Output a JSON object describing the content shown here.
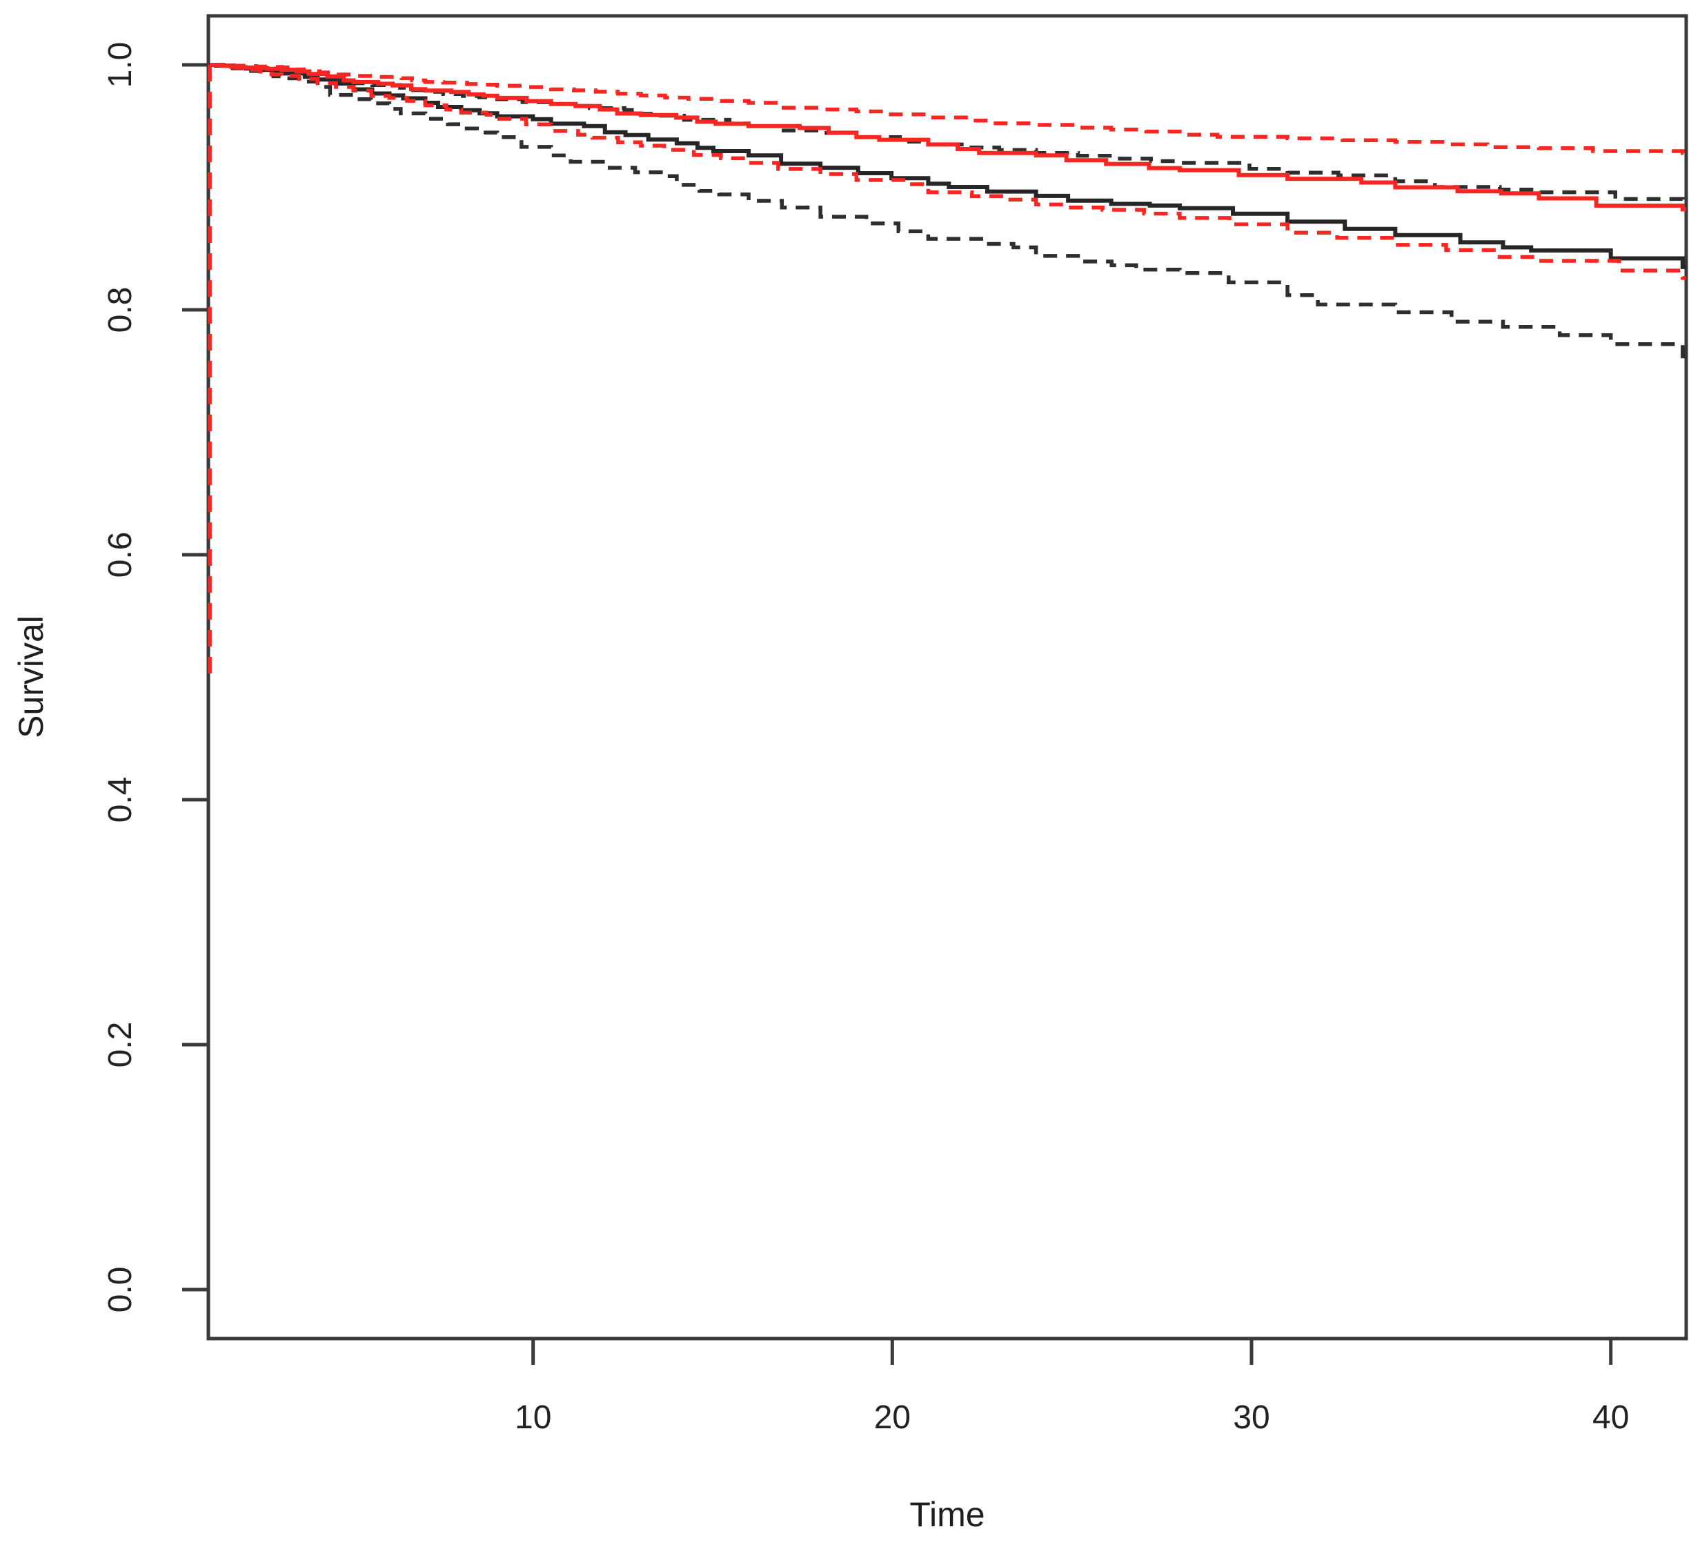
{
  "chart_data": {
    "type": "line",
    "title": "",
    "xlabel": "Time",
    "ylabel": "Survival",
    "grid": false,
    "legend": "none",
    "xlim": [
      0.96,
      42.1
    ],
    "ylim": [
      -0.04,
      1.04
    ],
    "x_ticks": [
      10,
      20,
      30,
      40
    ],
    "x_tick_labels": [
      "10",
      "20",
      "30",
      "40"
    ],
    "y_ticks": [
      0.0,
      0.2,
      0.4,
      0.6,
      0.8,
      1.0
    ],
    "y_tick_labels": [
      "0.0",
      "0.2",
      "0.4",
      "0.6",
      "0.8",
      "1.0"
    ],
    "curve_style": "kaplan-meier-steps",
    "series": [
      {
        "name": "black-estimate",
        "color": "#262626",
        "line": "solid",
        "width": 6,
        "seed": 7,
        "points": [
          [
            1,
            1.0
          ],
          [
            2,
            0.997
          ],
          [
            3,
            0.993
          ],
          [
            4,
            0.988
          ],
          [
            5,
            0.98
          ],
          [
            6,
            0.975
          ],
          [
            7,
            0.969
          ],
          [
            8,
            0.963
          ],
          [
            9,
            0.958
          ],
          [
            10.5,
            0.952
          ],
          [
            12,
            0.945
          ],
          [
            14,
            0.936
          ],
          [
            16,
            0.926
          ],
          [
            18,
            0.916
          ],
          [
            21,
            0.903
          ],
          [
            24,
            0.893
          ],
          [
            28,
            0.883
          ],
          [
            31,
            0.872
          ],
          [
            34,
            0.861
          ],
          [
            37,
            0.851
          ],
          [
            40,
            0.842
          ],
          [
            42,
            0.835
          ]
        ]
      },
      {
        "name": "black-upper-ci",
        "color": "#2e2e2e",
        "line": "dashed",
        "width": 5.5,
        "seed": 13,
        "points": [
          [
            1,
            1.0
          ],
          [
            3,
            0.996
          ],
          [
            5,
            0.985
          ],
          [
            7,
            0.978
          ],
          [
            9,
            0.972
          ],
          [
            10.5,
            0.968
          ],
          [
            13,
            0.96
          ],
          [
            16,
            0.95
          ],
          [
            19,
            0.941
          ],
          [
            21,
            0.935
          ],
          [
            24,
            0.928
          ],
          [
            28,
            0.92
          ],
          [
            31,
            0.912
          ],
          [
            34,
            0.905
          ],
          [
            38,
            0.896
          ],
          [
            42,
            0.886
          ]
        ]
      },
      {
        "name": "black-lower-ci",
        "color": "#2e2e2e",
        "line": "dashed",
        "width": 5.5,
        "seed": 21,
        "points": [
          [
            1,
            1.0
          ],
          [
            2,
            0.995
          ],
          [
            3,
            0.989
          ],
          [
            4,
            0.982
          ],
          [
            5,
            0.972
          ],
          [
            6,
            0.964
          ],
          [
            7,
            0.956
          ],
          [
            8,
            0.948
          ],
          [
            9,
            0.941
          ],
          [
            10.5,
            0.926
          ],
          [
            12,
            0.916
          ],
          [
            14,
            0.902
          ],
          [
            16,
            0.889
          ],
          [
            18,
            0.876
          ],
          [
            21,
            0.858
          ],
          [
            24,
            0.844
          ],
          [
            28,
            0.83
          ],
          [
            31,
            0.812
          ],
          [
            34,
            0.798
          ],
          [
            37,
            0.786
          ],
          [
            40,
            0.772
          ],
          [
            42,
            0.762
          ]
        ]
      },
      {
        "name": "red-estimate",
        "color": "#f62622",
        "line": "solid",
        "width": 6,
        "seed": 5,
        "points": [
          [
            1,
            1.0
          ],
          [
            3,
            0.996
          ],
          [
            5,
            0.986
          ],
          [
            7,
            0.979
          ],
          [
            9,
            0.973
          ],
          [
            10.5,
            0.968
          ],
          [
            13,
            0.959
          ],
          [
            16,
            0.95
          ],
          [
            19,
            0.941
          ],
          [
            21,
            0.935
          ],
          [
            24,
            0.926
          ],
          [
            28,
            0.914
          ],
          [
            31,
            0.907
          ],
          [
            34,
            0.9
          ],
          [
            38,
            0.891
          ],
          [
            42,
            0.882
          ]
        ]
      },
      {
        "name": "red-upper-ci",
        "color": "#f62622",
        "line": "dashed",
        "width": 5.5,
        "seed": 9,
        "points": [
          [
            1,
            1.0
          ],
          [
            3,
            0.998
          ],
          [
            5,
            0.991
          ],
          [
            7,
            0.986
          ],
          [
            9,
            0.983
          ],
          [
            10.5,
            0.98
          ],
          [
            13,
            0.975
          ],
          [
            16,
            0.969
          ],
          [
            19,
            0.962
          ],
          [
            21,
            0.957
          ],
          [
            24,
            0.951
          ],
          [
            28,
            0.943
          ],
          [
            31,
            0.94
          ],
          [
            34,
            0.937
          ],
          [
            38,
            0.932
          ],
          [
            42,
            0.928
          ]
        ]
      },
      {
        "name": "red-lower-ci",
        "color": "#f62622",
        "line": "dashed",
        "width": 5.5,
        "seed": 3,
        "points": [
          [
            1,
            1.0
          ],
          [
            2,
            0.996
          ],
          [
            3,
            0.991
          ],
          [
            4,
            0.985
          ],
          [
            5,
            0.979
          ],
          [
            6,
            0.973
          ],
          [
            7,
            0.967
          ],
          [
            8,
            0.961
          ],
          [
            9,
            0.956
          ],
          [
            10.5,
            0.946
          ],
          [
            13,
            0.934
          ],
          [
            16,
            0.92
          ],
          [
            19,
            0.906
          ],
          [
            21,
            0.896
          ],
          [
            24,
            0.886
          ],
          [
            28,
            0.875
          ],
          [
            31,
            0.863
          ],
          [
            34,
            0.853
          ],
          [
            38,
            0.84
          ],
          [
            42,
            0.826
          ]
        ]
      }
    ],
    "vline": {
      "name": "red-dashed-drop-line",
      "x": 1,
      "y_from": 1.0,
      "y_to": 0.503,
      "color": "#f62622",
      "line": "dashed"
    }
  },
  "colors": {
    "background": "#ffffff",
    "axis": "#3a3a3a",
    "text": "#222222",
    "black_series": "#262626",
    "red_series": "#f62622"
  }
}
